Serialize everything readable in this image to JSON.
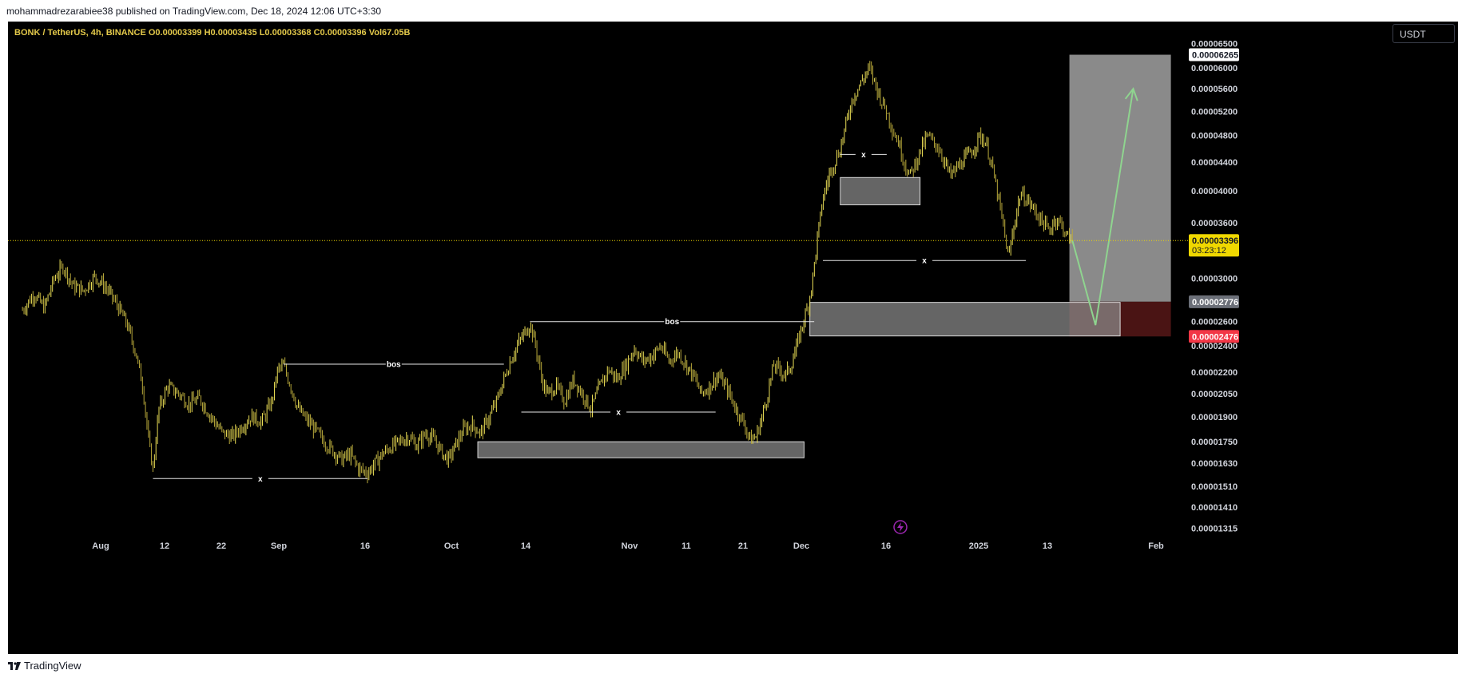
{
  "publish_line": "mohammadrezarabiee38 published on TradingView.com, Dec 18, 2024 12:06 UTC+3:30",
  "footer": {
    "brand": "TradingView"
  },
  "colors": {
    "background": "#000000",
    "candles": "#e3d64a",
    "current_price": "#f0d800",
    "target_zone": "#8a8a8a",
    "stop_zone": "#4a1414",
    "stop_label": "#f23645",
    "arrow": "#8fd48f"
  },
  "toolbar": {
    "currency": "USDT"
  },
  "chart_data": {
    "type": "candlestick",
    "symbol_line": "BONK / TetherUS, 4h, BINANCE  O0.00003399  H0.00003435  L0.00003368  C0.00003396  Vol67.05B",
    "ohlc": {
      "open": 3.399e-05,
      "high": 3.435e-05,
      "low": 3.368e-05,
      "close": 3.396e-05,
      "volume": "67.05B"
    },
    "x_ticks": [
      "Aug",
      "12",
      "22",
      "Sep",
      "16",
      "Oct",
      "14",
      "Nov",
      "11",
      "21",
      "Dec",
      "16",
      "2025",
      "13",
      "Feb"
    ],
    "y_ticks": [
      "0.00006500",
      "0.00006000",
      "0.00005600",
      "0.00005200",
      "0.00004800",
      "0.00004400",
      "0.00004000",
      "0.00003600",
      "0.00003000",
      "0.00002600",
      "0.00002400",
      "0.00002200",
      "0.00002050",
      "0.00001900",
      "0.00001750",
      "0.00001630",
      "0.00001510",
      "0.00001410",
      "0.00001315"
    ],
    "y_scale": "log",
    "price_labels": {
      "target": "0.00006265",
      "current": "0.00003396",
      "countdown": "03:23:12",
      "entry": "0.00002776",
      "stop": "0.00002476"
    },
    "annotations": [
      "bos",
      "bos",
      "x",
      "x",
      "x",
      "x"
    ],
    "price_path": [
      [
        0.01,
        2.7e-05
      ],
      [
        0.018,
        2.85e-05
      ],
      [
        0.025,
        2.72e-05
      ],
      [
        0.032,
        3e-05
      ],
      [
        0.038,
        3.12e-05
      ],
      [
        0.045,
        2.92e-05
      ],
      [
        0.052,
        2.88e-05
      ],
      [
        0.06,
        3.02e-05
      ],
      [
        0.068,
        2.9e-05
      ],
      [
        0.075,
        2.75e-05
      ],
      [
        0.082,
        2.58e-05
      ],
      [
        0.088,
        2.35e-05
      ],
      [
        0.093,
        2.1e-05
      ],
      [
        0.097,
        1.75e-05
      ],
      [
        0.1,
        1.6e-05
      ],
      [
        0.104,
        1.95e-05
      ],
      [
        0.11,
        2.1e-05
      ],
      [
        0.118,
        2.05e-05
      ],
      [
        0.125,
        1.98e-05
      ],
      [
        0.132,
        2.02e-05
      ],
      [
        0.14,
        1.9e-05
      ],
      [
        0.148,
        1.8e-05
      ],
      [
        0.155,
        1.78e-05
      ],
      [
        0.162,
        1.85e-05
      ],
      [
        0.168,
        1.9e-05
      ],
      [
        0.175,
        1.87e-05
      ],
      [
        0.182,
        2e-05
      ],
      [
        0.186,
        2.22e-05
      ],
      [
        0.19,
        2.25e-05
      ],
      [
        0.195,
        2.1e-05
      ],
      [
        0.2,
        1.95e-05
      ],
      [
        0.206,
        1.88e-05
      ],
      [
        0.212,
        1.82e-05
      ],
      [
        0.218,
        1.75e-05
      ],
      [
        0.224,
        1.7e-05
      ],
      [
        0.23,
        1.65e-05
      ],
      [
        0.236,
        1.68e-05
      ],
      [
        0.242,
        1.6e-05
      ],
      [
        0.248,
        1.58e-05
      ],
      [
        0.252,
        1.62e-05
      ],
      [
        0.258,
        1.68e-05
      ],
      [
        0.264,
        1.72e-05
      ],
      [
        0.27,
        1.75e-05
      ],
      [
        0.276,
        1.78e-05
      ],
      [
        0.282,
        1.73e-05
      ],
      [
        0.288,
        1.8e-05
      ],
      [
        0.294,
        1.76e-05
      ],
      [
        0.3,
        1.68e-05
      ],
      [
        0.304,
        1.65e-05
      ],
      [
        0.308,
        1.72e-05
      ],
      [
        0.314,
        1.82e-05
      ],
      [
        0.32,
        1.85e-05
      ],
      [
        0.326,
        1.8e-05
      ],
      [
        0.332,
        1.9e-05
      ],
      [
        0.337,
        2e-05
      ],
      [
        0.342,
        2.15e-05
      ],
      [
        0.347,
        2.3e-05
      ],
      [
        0.352,
        2.42e-05
      ],
      [
        0.356,
        2.5e-05
      ],
      [
        0.36,
        2.58e-05
      ],
      [
        0.364,
        2.4e-05
      ],
      [
        0.368,
        2.15e-05
      ],
      [
        0.372,
        2.05e-05
      ],
      [
        0.378,
        2.1e-05
      ],
      [
        0.384,
        2e-05
      ],
      [
        0.39,
        2.15e-05
      ],
      [
        0.396,
        2.05e-05
      ],
      [
        0.402,
        1.95e-05
      ],
      [
        0.408,
        2.1e-05
      ],
      [
        0.414,
        2.22e-05
      ],
      [
        0.42,
        2.15e-05
      ],
      [
        0.426,
        2.25e-05
      ],
      [
        0.432,
        2.38e-05
      ],
      [
        0.438,
        2.28e-05
      ],
      [
        0.444,
        2.32e-05
      ],
      [
        0.45,
        2.4e-05
      ],
      [
        0.456,
        2.28e-05
      ],
      [
        0.462,
        2.35e-05
      ],
      [
        0.468,
        2.25e-05
      ],
      [
        0.474,
        2.15e-05
      ],
      [
        0.478,
        2.05e-05
      ],
      [
        0.484,
        2.1e-05
      ],
      [
        0.49,
        2.18e-05
      ],
      [
        0.496,
        2.08e-05
      ],
      [
        0.502,
        1.95e-05
      ],
      [
        0.508,
        1.85e-05
      ],
      [
        0.512,
        1.76e-05
      ],
      [
        0.516,
        1.78e-05
      ],
      [
        0.52,
        1.9e-05
      ],
      [
        0.524,
        2.05e-05
      ],
      [
        0.528,
        2.25e-05
      ],
      [
        0.532,
        2.22e-05
      ],
      [
        0.536,
        2.18e-05
      ],
      [
        0.54,
        2.25e-05
      ],
      [
        0.544,
        2.4e-05
      ],
      [
        0.548,
        2.58e-05
      ],
      [
        0.552,
        2.75e-05
      ],
      [
        0.555,
        3e-05
      ],
      [
        0.558,
        3.4e-05
      ],
      [
        0.562,
        3.9e-05
      ],
      [
        0.566,
        4.2e-05
      ],
      [
        0.57,
        4.4e-05
      ],
      [
        0.574,
        4.6e-05
      ],
      [
        0.578,
        5e-05
      ],
      [
        0.582,
        5.4e-05
      ],
      [
        0.586,
        5.6e-05
      ],
      [
        0.59,
        5.8e-05
      ],
      [
        0.594,
        6e-05
      ],
      [
        0.598,
        5.7e-05
      ],
      [
        0.602,
        5.4e-05
      ],
      [
        0.606,
        5.2e-05
      ],
      [
        0.61,
        4.9e-05
      ],
      [
        0.614,
        4.7e-05
      ],
      [
        0.618,
        4.4e-05
      ],
      [
        0.622,
        4.2e-05
      ],
      [
        0.626,
        4.4e-05
      ],
      [
        0.63,
        4.6e-05
      ],
      [
        0.634,
        4.8e-05
      ],
      [
        0.638,
        4.7e-05
      ],
      [
        0.642,
        4.6e-05
      ],
      [
        0.646,
        4.4e-05
      ],
      [
        0.65,
        4.2e-05
      ],
      [
        0.654,
        4.3e-05
      ],
      [
        0.658,
        4.4e-05
      ],
      [
        0.662,
        4.5e-05
      ],
      [
        0.666,
        4.6e-05
      ],
      [
        0.67,
        4.8e-05
      ],
      [
        0.674,
        4.7e-05
      ],
      [
        0.678,
        4.4e-05
      ],
      [
        0.682,
        4e-05
      ],
      [
        0.686,
        3.6e-05
      ],
      [
        0.69,
        3.2e-05
      ],
      [
        0.694,
        3.6e-05
      ],
      [
        0.698,
        3.95e-05
      ],
      [
        0.702,
        3.9e-05
      ],
      [
        0.706,
        3.8e-05
      ],
      [
        0.71,
        3.7e-05
      ],
      [
        0.714,
        3.6e-05
      ],
      [
        0.718,
        3.5e-05
      ],
      [
        0.722,
        3.65e-05
      ],
      [
        0.726,
        3.6e-05
      ],
      [
        0.73,
        3.45e-05
      ],
      [
        0.734,
        3.4e-05
      ]
    ],
    "projection_path": [
      [
        0.734,
        3.4e-05
      ],
      [
        0.75,
        2.57e-05
      ],
      [
        0.776,
        5.6e-05
      ]
    ],
    "levels": [
      {
        "x_from": 0.1,
        "x_to": 0.248,
        "y": 1.55e-05,
        "label": "x"
      },
      {
        "x_from": 0.19,
        "x_to": 0.342,
        "y": 2.26e-05,
        "label": "bos"
      },
      {
        "x_from": 0.36,
        "x_to": 0.556,
        "y": 2.6e-05,
        "label": "bos"
      },
      {
        "x_from": 0.354,
        "x_to": 0.488,
        "y": 1.93e-05,
        "label": "x"
      },
      {
        "x_from": 0.574,
        "x_to": 0.606,
        "y": 4.51e-05,
        "label": "x"
      },
      {
        "x_from": 0.562,
        "x_to": 0.702,
        "y": 3.18e-05,
        "label": "x"
      }
    ],
    "zones": [
      {
        "x_from": 0.324,
        "x_to": 0.549,
        "y_top": 1.75e-05,
        "y_bottom": 1.66e-05
      },
      {
        "x_from": 0.574,
        "x_to": 0.629,
        "y_top": 4.18e-05,
        "y_bottom": 3.82e-05
      },
      {
        "x_from": 0.553,
        "x_to": 0.767,
        "y_top": 2.77e-05,
        "y_bottom": 2.48e-05
      }
    ],
    "trade": {
      "x_from": 0.732,
      "x_to": 0.802,
      "target": 6.265e-05,
      "entry": 2.776e-05,
      "stop": 2.476e-05
    }
  }
}
